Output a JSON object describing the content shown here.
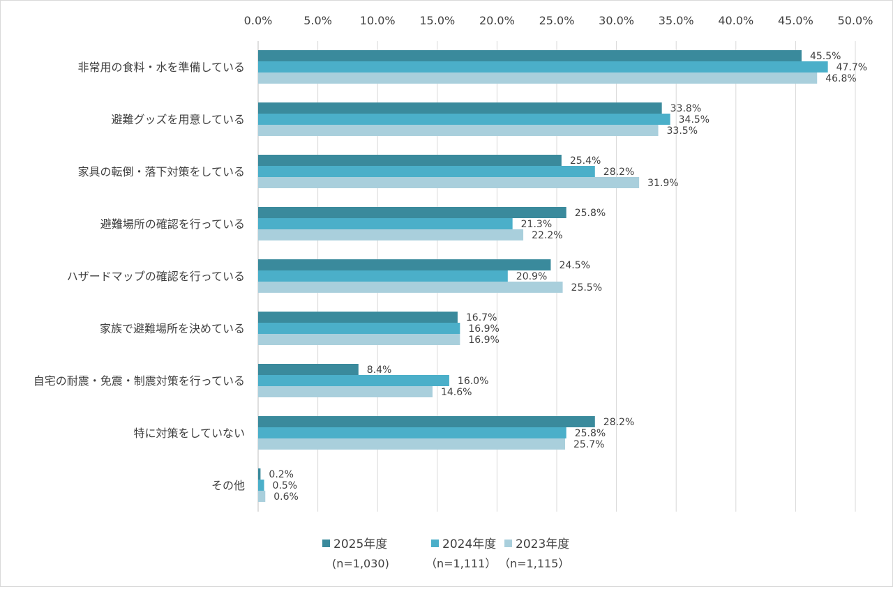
{
  "chart_data": {
    "type": "bar",
    "orientation": "horizontal",
    "categories": [
      "非常用の食料・水を準備している",
      "避難グッズを用意している",
      "家具の転倒・落下対策をしている",
      "避難場所の確認を行っている",
      "ハザードマップの確認を行っている",
      "家族で避難場所を決めている",
      "自宅の耐震・免震・制震対策を行っている",
      "特に対策をしていない",
      "その他"
    ],
    "series": [
      {
        "name": "2025年度",
        "n_label": "(n=1,030)",
        "color": "#3a8a9c",
        "values": [
          45.5,
          33.8,
          25.4,
          25.8,
          24.5,
          16.7,
          8.4,
          28.2,
          0.2
        ],
        "labels": [
          "45.5%",
          "33.8%",
          "25.4%",
          "25.8%",
          "24.5%",
          "16.7%",
          "8.4%",
          "28.2%",
          "0.2%"
        ]
      },
      {
        "name": "2024年度",
        "n_label": "（n=1,111）",
        "color": "#4bafc9",
        "values": [
          47.7,
          34.5,
          28.2,
          21.3,
          20.9,
          16.9,
          16.0,
          25.8,
          0.5
        ],
        "labels": [
          "47.7%",
          "34.5%",
          "28.2%",
          "21.3%",
          "20.9%",
          "16.9%",
          "16.0%",
          "25.8%",
          "0.5%"
        ]
      },
      {
        "name": "2023年度",
        "n_label": "（n=1,115）",
        "color": "#a9cfdc",
        "values": [
          46.8,
          33.5,
          31.9,
          22.2,
          25.5,
          16.9,
          14.6,
          25.7,
          0.6
        ],
        "labels": [
          "46.8%",
          "33.5%",
          "31.9%",
          "22.2%",
          "25.5%",
          "16.9%",
          "14.6%",
          "25.7%",
          "0.6%"
        ]
      }
    ],
    "xlim": [
      0,
      50
    ],
    "ticks": [
      0,
      5,
      10,
      15,
      20,
      25,
      30,
      35,
      40,
      45,
      50
    ],
    "tick_labels": [
      "0.0%",
      "5.0%",
      "10.0%",
      "15.0%",
      "20.0%",
      "25.0%",
      "30.0%",
      "35.0%",
      "40.0%",
      "45.0%",
      "50.0%"
    ],
    "grid": true,
    "legend_position": "bottom",
    "title": "",
    "xlabel": "",
    "ylabel": ""
  }
}
